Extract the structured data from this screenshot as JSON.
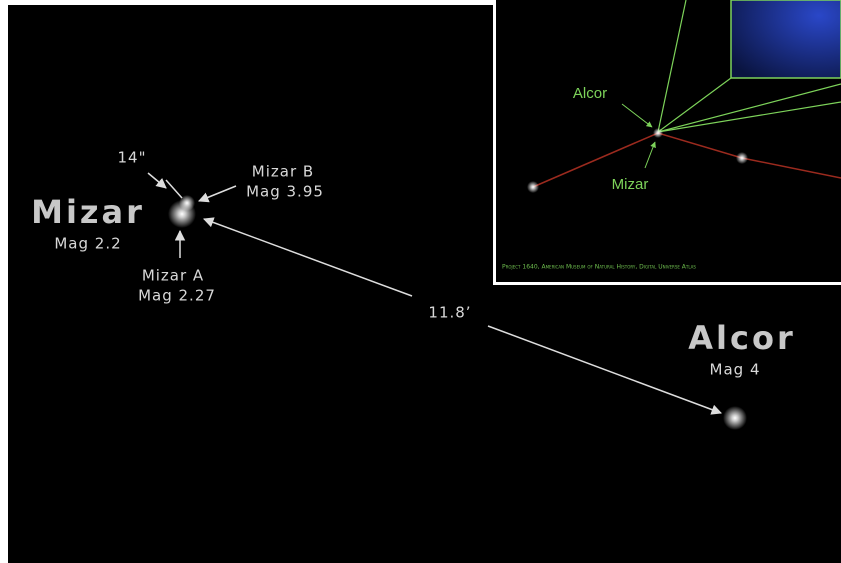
{
  "main": {
    "mizar": {
      "name": "Mizar",
      "mag": "Mag 2.2"
    },
    "mizar_a": {
      "name": "Mizar A",
      "mag": "Mag 2.27"
    },
    "mizar_b": {
      "name": "Mizar B",
      "mag": "Mag 3.95"
    },
    "separation_ab": "14\"",
    "alcor": {
      "name": "Alcor",
      "mag": "Mag 4"
    },
    "separation_alcor": "11.8’"
  },
  "inset": {
    "alcor_label": "Alcor",
    "mizar_label": "Mizar",
    "credit": "Project 1640, American Museum of Natural History, Digital Universe Atlas"
  }
}
